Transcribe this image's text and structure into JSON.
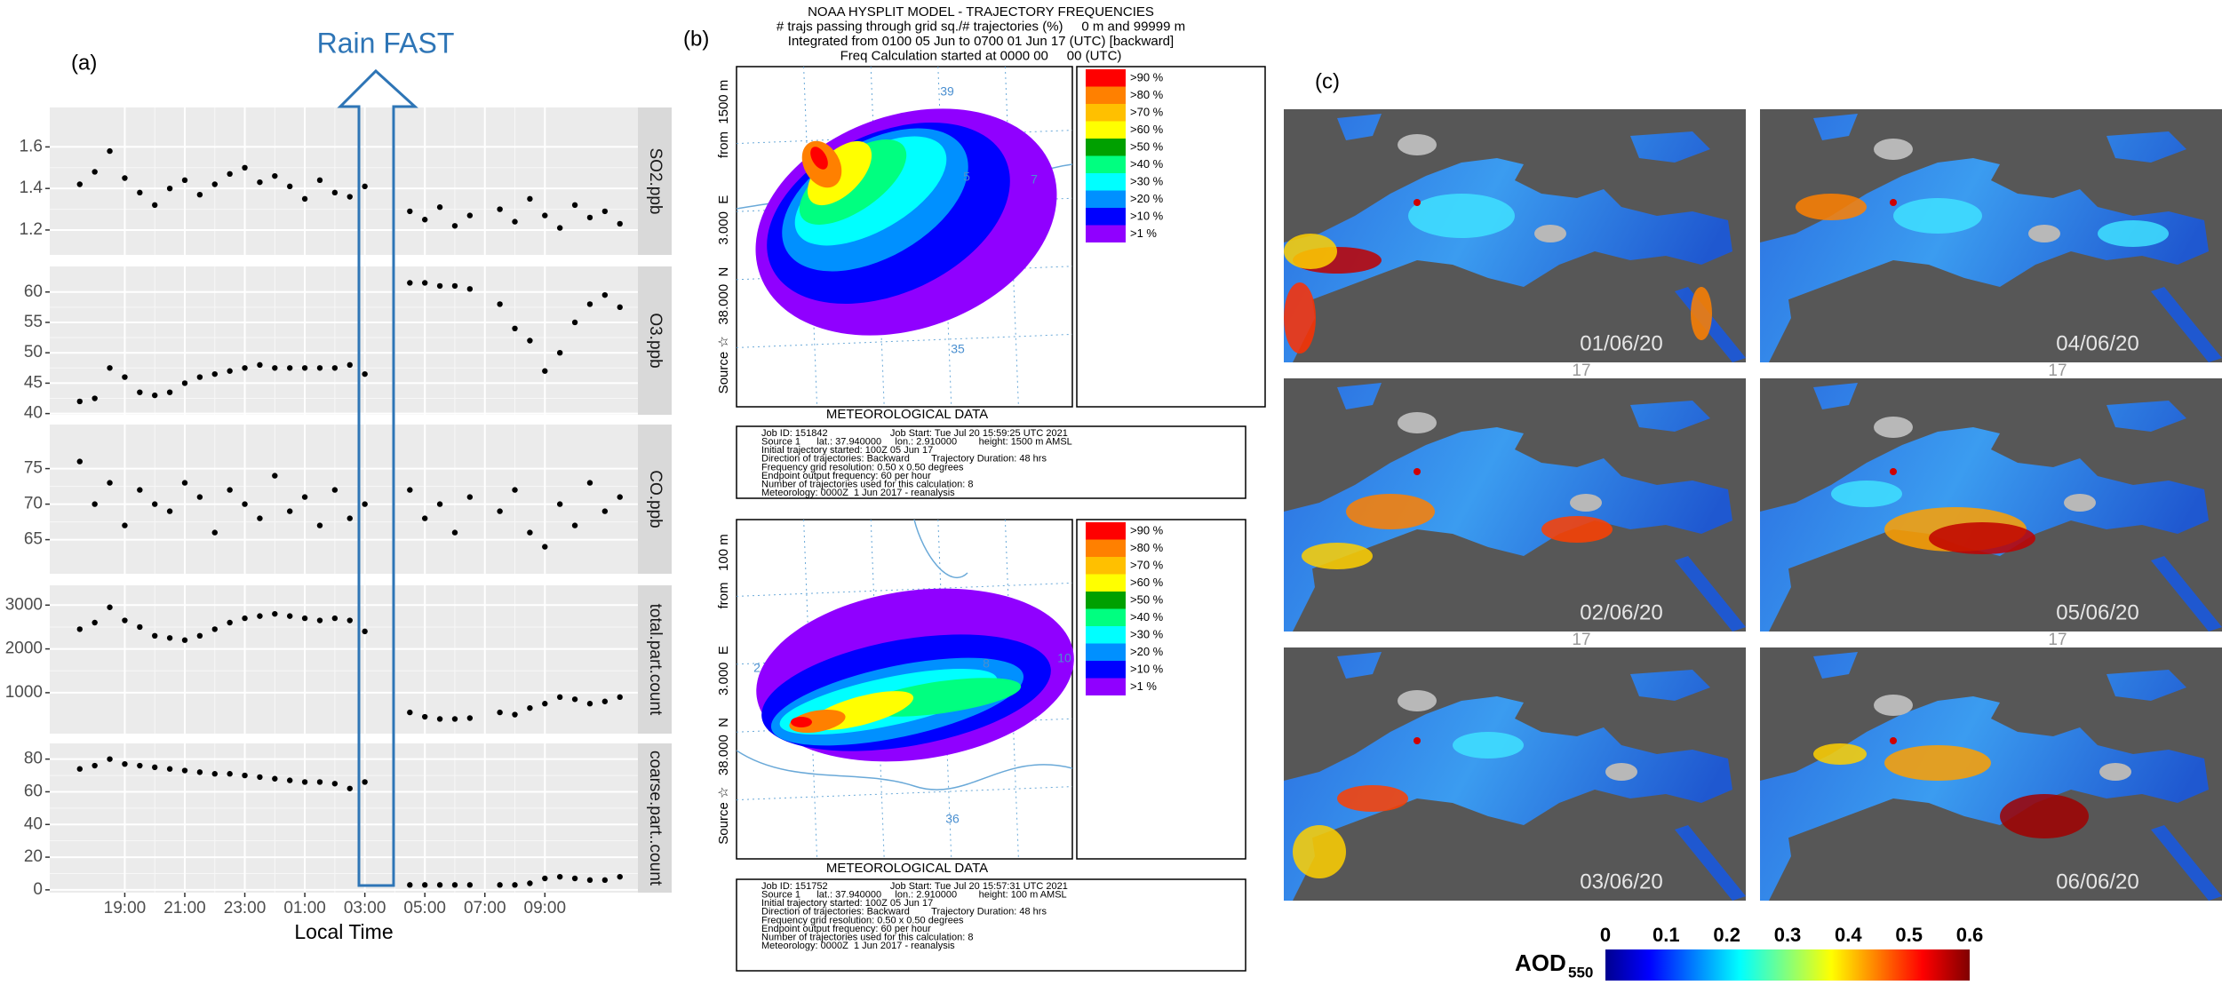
{
  "panel_a": {
    "label": "(a)",
    "annotation": "Rain FAST"
  },
  "chart_data": [
    {
      "type": "scatter",
      "facet_label": "SO2.ppb",
      "xlim": [
        16.5,
        36.1
      ],
      "ylim": [
        1.08,
        1.79
      ],
      "xticks": [
        {
          "value": 19,
          "label": "19:00"
        },
        {
          "value": 21,
          "label": "21:00"
        },
        {
          "value": 23,
          "label": "23:00"
        },
        {
          "value": 25,
          "label": "01:00"
        },
        {
          "value": 27,
          "label": "03:00"
        },
        {
          "value": 29,
          "label": "05:00"
        },
        {
          "value": 31,
          "label": "07:00"
        },
        {
          "value": 33,
          "label": "09:00"
        }
      ],
      "yticks": [
        1.2,
        1.4,
        1.6
      ],
      "color": "#000000",
      "x": [
        17.5,
        18,
        18.5,
        19,
        19.5,
        20,
        20.5,
        21,
        21.5,
        22,
        22.5,
        23,
        23.5,
        24,
        24.5,
        25,
        25.5,
        26,
        26.5,
        27,
        28.5,
        29,
        29.5,
        30,
        30.5,
        31.5,
        32,
        32.5,
        33,
        33.5,
        34,
        34.5,
        35,
        35.5
      ],
      "values": [
        1.42,
        1.48,
        1.58,
        1.45,
        1.38,
        1.32,
        1.4,
        1.44,
        1.37,
        1.42,
        1.47,
        1.5,
        1.43,
        1.46,
        1.41,
        1.35,
        1.44,
        1.38,
        1.36,
        1.41,
        1.29,
        1.25,
        1.31,
        1.22,
        1.27,
        1.3,
        1.24,
        1.35,
        1.27,
        1.21,
        1.32,
        1.26,
        1.29,
        1.23
      ]
    },
    {
      "type": "scatter",
      "facet_label": "O3.ppb",
      "xlim": [
        16.5,
        36.1
      ],
      "ylim": [
        39.8,
        64.2
      ],
      "xticks": [
        {
          "value": 19,
          "label": "19:00"
        },
        {
          "value": 21,
          "label": "21:00"
        },
        {
          "value": 23,
          "label": "23:00"
        },
        {
          "value": 25,
          "label": "01:00"
        },
        {
          "value": 27,
          "label": "03:00"
        },
        {
          "value": 29,
          "label": "05:00"
        },
        {
          "value": 31,
          "label": "07:00"
        },
        {
          "value": 33,
          "label": "09:00"
        }
      ],
      "yticks": [
        40,
        45,
        50,
        55,
        60
      ],
      "color": "#000000",
      "x": [
        17.5,
        18,
        18.5,
        19,
        19.5,
        20,
        20.5,
        21,
        21.5,
        22,
        22.5,
        23,
        23.5,
        24,
        24.5,
        25,
        25.5,
        26,
        26.5,
        27,
        28.5,
        29,
        29.5,
        30,
        30.5,
        31.5,
        32,
        32.5,
        33,
        33.5,
        34,
        34.5,
        35,
        35.5
      ],
      "values": [
        42,
        42.5,
        47.5,
        46,
        43.5,
        43,
        43.5,
        45,
        46,
        46.5,
        47,
        47.5,
        48,
        47.5,
        47.5,
        47.5,
        47.5,
        47.5,
        48,
        46.5,
        61.5,
        61.5,
        61,
        61,
        60.5,
        58,
        54,
        52,
        47,
        50,
        55,
        58,
        59.5,
        57.5
      ]
    },
    {
      "type": "scatter",
      "facet_label": "CO.ppb",
      "xlim": [
        16.5,
        36.1
      ],
      "ylim": [
        60.2,
        81.2
      ],
      "xticks": [
        {
          "value": 19,
          "label": "19:00"
        },
        {
          "value": 21,
          "label": "21:00"
        },
        {
          "value": 23,
          "label": "23:00"
        },
        {
          "value": 25,
          "label": "01:00"
        },
        {
          "value": 27,
          "label": "03:00"
        },
        {
          "value": 29,
          "label": "05:00"
        },
        {
          "value": 31,
          "label": "07:00"
        },
        {
          "value": 33,
          "label": "09:00"
        }
      ],
      "yticks": [
        65,
        70,
        75
      ],
      "color": "#000000",
      "x": [
        17.5,
        18,
        18.5,
        19,
        19.5,
        20,
        20.5,
        21,
        21.5,
        22,
        22.5,
        23,
        23.5,
        24,
        24.5,
        25,
        25.5,
        26,
        26.5,
        27,
        28.5,
        29,
        29.5,
        30,
        30.5,
        31.5,
        32,
        32.5,
        33,
        33.5,
        34,
        34.5,
        35,
        35.5
      ],
      "values": [
        76,
        70,
        73,
        67,
        72,
        70,
        69,
        73,
        71,
        66,
        72,
        70,
        68,
        74,
        69,
        71,
        67,
        72,
        68,
        70,
        72,
        68,
        70,
        66,
        71,
        69,
        72,
        66,
        64,
        70,
        67,
        73,
        69,
        71
      ]
    },
    {
      "type": "scatter",
      "facet_label": "total.part.count",
      "xlim": [
        16.5,
        36.1
      ],
      "ylim": [
        65,
        3452
      ],
      "xticks": [
        {
          "value": 19,
          "label": "19:00"
        },
        {
          "value": 21,
          "label": "21:00"
        },
        {
          "value": 23,
          "label": "23:00"
        },
        {
          "value": 25,
          "label": "01:00"
        },
        {
          "value": 27,
          "label": "03:00"
        },
        {
          "value": 29,
          "label": "05:00"
        },
        {
          "value": 31,
          "label": "07:00"
        },
        {
          "value": 33,
          "label": "09:00"
        }
      ],
      "yticks": [
        1000,
        2000,
        3000
      ],
      "color": "#000000",
      "x": [
        17.5,
        18,
        18.5,
        19,
        19.5,
        20,
        20.5,
        21,
        21.5,
        22,
        22.5,
        23,
        23.5,
        24,
        24.5,
        25,
        25.5,
        26,
        26.5,
        27,
        28.5,
        29,
        29.5,
        30,
        30.5,
        31.5,
        32,
        32.5,
        33,
        33.5,
        34,
        34.5,
        35,
        35.5
      ],
      "values": [
        2450,
        2600,
        2950,
        2650,
        2500,
        2300,
        2250,
        2200,
        2300,
        2450,
        2600,
        2700,
        2750,
        2800,
        2750,
        2700,
        2650,
        2700,
        2650,
        2400,
        550,
        450,
        400,
        400,
        420,
        550,
        500,
        650,
        750,
        900,
        850,
        750,
        800,
        900
      ]
    },
    {
      "type": "scatter",
      "facet_label": "coarse.part..count",
      "x_label": "Local Time",
      "xlim": [
        16.5,
        36.1
      ],
      "ylim": [
        -1.7,
        89.6
      ],
      "xticks": [
        {
          "value": 19,
          "label": "19:00"
        },
        {
          "value": 21,
          "label": "21:00"
        },
        {
          "value": 23,
          "label": "23:00"
        },
        {
          "value": 25,
          "label": "01:00"
        },
        {
          "value": 27,
          "label": "03:00"
        },
        {
          "value": 29,
          "label": "05:00"
        },
        {
          "value": 31,
          "label": "07:00"
        },
        {
          "value": 33,
          "label": "09:00"
        }
      ],
      "yticks": [
        0,
        20,
        40,
        60,
        80
      ],
      "color": "#000000",
      "x": [
        17.5,
        18,
        18.5,
        19,
        19.5,
        20,
        20.5,
        21,
        21.5,
        22,
        22.5,
        23,
        23.5,
        24,
        24.5,
        25,
        25.5,
        26,
        26.5,
        27,
        28.5,
        29,
        29.5,
        30,
        30.5,
        31.5,
        32,
        32.5,
        33,
        33.5,
        34,
        34.5,
        35,
        35.5
      ],
      "values": [
        74,
        76,
        80,
        77,
        76,
        75,
        74,
        73,
        72,
        71,
        71,
        70,
        69,
        68,
        67,
        66,
        66,
        65,
        62,
        66,
        3,
        3,
        3,
        3,
        3,
        3,
        3,
        4,
        7,
        8,
        7,
        6,
        6,
        8
      ]
    }
  ],
  "panel_b": {
    "label": "(b)",
    "header": [
      "NOAA HYSPLIT MODEL - TRAJECTORY FREQUENCIES",
      "# trajs passing through grid sq./# trajectories (%)     0 m and 99999 m",
      "Integrated from 0100 05 Jun to 0700 01 Jun 17 (UTC) [backward]",
      "Freq Calculation started at 0000 00     00 (UTC)"
    ],
    "legend": [
      {
        "label": ">90 %",
        "color": "#ff0000"
      },
      {
        "label": ">80 %",
        "color": "#ff8000"
      },
      {
        "label": ">70 %",
        "color": "#ffc000"
      },
      {
        "label": ">60 %",
        "color": "#ffff00"
      },
      {
        "label": ">50 %",
        "color": "#00a000"
      },
      {
        "label": ">40 %",
        "color": "#00ff80"
      },
      {
        "label": ">30 %",
        "color": "#00ffff"
      },
      {
        "label": ">20 %",
        "color": "#0090ff"
      },
      {
        "label": ">10 %",
        "color": "#0000ff"
      },
      {
        "label": ">1 %",
        "color": "#9000ff"
      }
    ],
    "maps": [
      {
        "source_text": "Source ☆   38.000  N      3.000  E          from  1500 m",
        "grid_labels": [
          "39",
          "35",
          "5",
          "7"
        ],
        "footer": "METEOROLOGICAL DATA",
        "info": [
          "Job ID: 151842                       Job Start: Tue Jul 20 15:59:25 UTC 2021",
          "Source 1      lat.: 37.940000     lon.: 2.910000        height: 1500 m AMSL",
          "Initial trajectory started: 100Z 05 Jun 17",
          "Direction of trajectories: Backward        Trajectory Duration: 48 hrs",
          "Frequency grid resolution: 0.50 x 0.50 degrees",
          "Endpoint output frequency: 60 per hour",
          "Number of trajectories used for this calculation: 8",
          "Meteorology: 0000Z  1 Jun 2017 - reanalysis"
        ]
      },
      {
        "source_text": "Source ☆   38.000  N      3.000  E          from   100 m",
        "grid_labels": [
          "36",
          "2",
          "10",
          "8"
        ],
        "footer": "METEOROLOGICAL DATA",
        "info": [
          "Job ID: 151752                       Job Start: Tue Jul 20 15:57:31 UTC 2021",
          "Source 1      lat.: 37.940000     lon.: 2.910000        height: 100 m AMSL",
          "Initial trajectory started: 100Z 05 Jun 17",
          "Direction of trajectories: Backward        Trajectory Duration: 48 hrs",
          "Frequency grid resolution: 0.50 x 0.50 degrees",
          "Endpoint output frequency: 60 per hour",
          "Number of trajectories used for this calculation: 8",
          "Meteorology: 0000Z  1 Jun 2017 - reanalysis"
        ]
      }
    ]
  },
  "panel_c": {
    "label": "(c)",
    "tiles": [
      "01/06/20",
      "04/06/20",
      "02/06/20",
      "05/06/20",
      "03/06/20",
      "06/06/20"
    ],
    "stray_label": "17",
    "colorbar": {
      "label": "AOD",
      "label_sub": "550",
      "lim": [
        0,
        0.6
      ],
      "ticks": [
        0,
        0.1,
        0.2,
        0.3,
        0.4,
        0.5,
        0.6
      ]
    }
  }
}
